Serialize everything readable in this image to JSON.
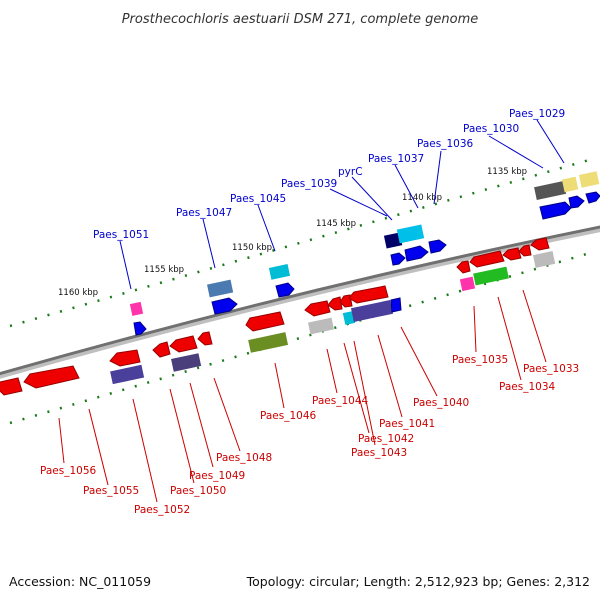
{
  "title": "Prosthecochloris aestuarii DSM 271, complete genome",
  "footer": {
    "accession": "Accession: NC_011059",
    "summary": "Topology: circular; Length: 2,512,923 bp; Genes: 2,312"
  },
  "colors": {
    "upper_label": "#0000cc",
    "lower_label": "#cc0000",
    "backbone": "#777777",
    "tick": "#1a7a1a"
  },
  "scale_labels": [
    "1160 kbp",
    "1155 kbp",
    "1150 kbp",
    "1145 kbp",
    "1140 kbp",
    "1135 kbp"
  ],
  "upper_labels": [
    "Paes_1051",
    "Paes_1047",
    "Paes_1045",
    "Paes_1039",
    "pyrC",
    "Paes_1037",
    "Paes_1036",
    "Paes_1030",
    "Paes_1029"
  ],
  "lower_labels": [
    "Paes_1056",
    "Paes_1055",
    "Paes_1052",
    "Paes_1050",
    "Paes_1049",
    "Paes_1048",
    "Paes_1046",
    "Paes_1044",
    "Paes_1042",
    "Paes_1043",
    "Paes_1041",
    "Paes_1040",
    "Paes_1035",
    "Paes_1034",
    "Paes_1033"
  ]
}
